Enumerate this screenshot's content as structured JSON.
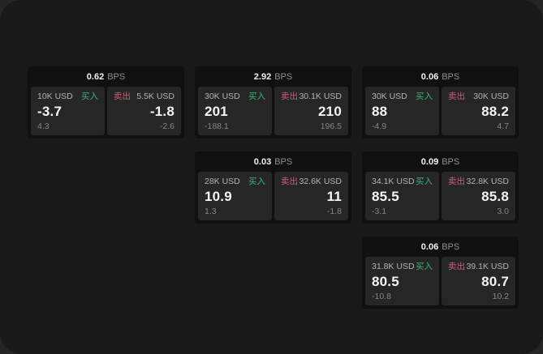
{
  "page": {
    "buy_label": "买入",
    "sell_label": "卖出",
    "bps_unit": "BPS"
  },
  "colors": {
    "backdrop": "#252525",
    "window_bg": "#191919",
    "card_bg": "#101011",
    "cell_bg": "#262627",
    "buy_green": "#37b578",
    "sell_red": "#d15b76",
    "price_text": "#f5f5f5",
    "amount_text": "#b3b3b3",
    "delta_text": "#868686"
  },
  "cards": [
    {
      "col": 1,
      "row": 1,
      "bps": "0.62",
      "buy": {
        "amount": "10K USD",
        "price": "-3.7",
        "delta": "4.3"
      },
      "sell": {
        "amount": "5.5K USD",
        "price": "-1.8",
        "delta": "-2.6"
      }
    },
    {
      "col": 2,
      "row": 1,
      "bps": "2.92",
      "buy": {
        "amount": "30K USD",
        "price": "201",
        "delta": "-188.1"
      },
      "sell": {
        "amount": "30.1K USD",
        "price": "210",
        "delta": "196.5"
      }
    },
    {
      "col": 3,
      "row": 1,
      "bps": "0.06",
      "buy": {
        "amount": "30K USD",
        "price": "88",
        "delta": "-4.9"
      },
      "sell": {
        "amount": "30K USD",
        "price": "88.2",
        "delta": "4.7"
      }
    },
    {
      "col": 2,
      "row": 2,
      "bps": "0.03",
      "buy": {
        "amount": "28K USD",
        "price": "10.9",
        "delta": "1.3"
      },
      "sell": {
        "amount": "32.6K USD",
        "price": "11",
        "delta": "-1.8"
      }
    },
    {
      "col": 3,
      "row": 2,
      "bps": "0.09",
      "buy": {
        "amount": "34.1K USD",
        "price": "85.5",
        "delta": "-3.1"
      },
      "sell": {
        "amount": "32.8K USD",
        "price": "85.8",
        "delta": "3.0"
      }
    },
    {
      "col": 3,
      "row": 3,
      "bps": "0.06",
      "buy": {
        "amount": "31.8K USD",
        "price": "80.5",
        "delta": "-10.8"
      },
      "sell": {
        "amount": "39.1K USD",
        "price": "80.7",
        "delta": "10.2"
      }
    }
  ]
}
